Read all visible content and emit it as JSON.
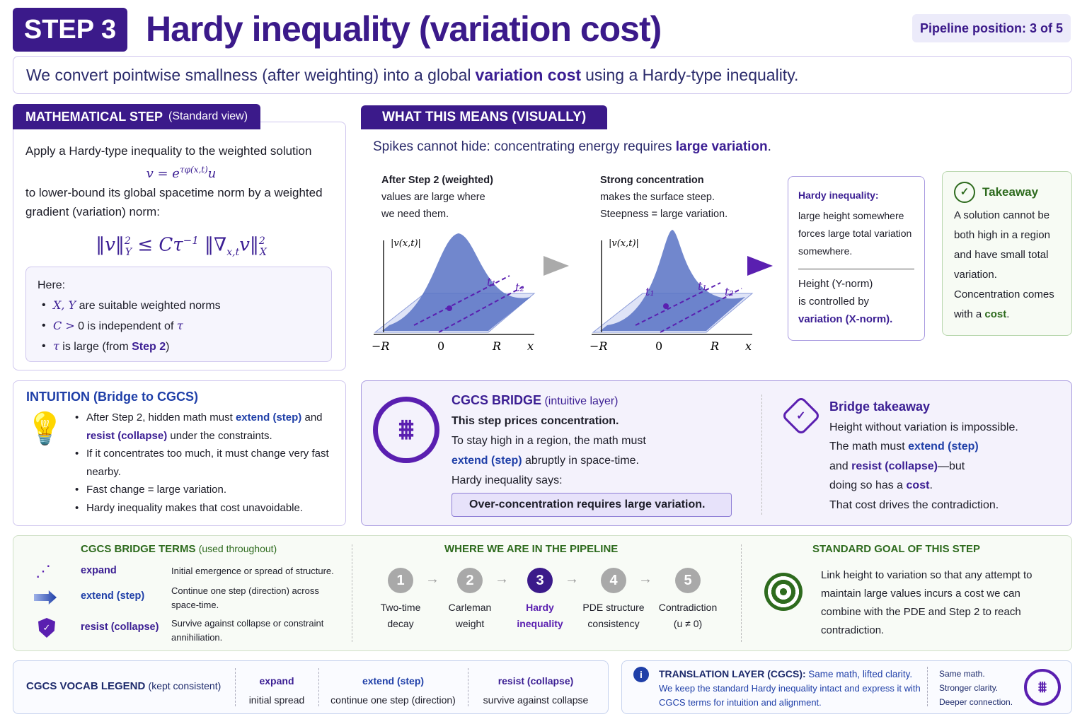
{
  "header": {
    "step_badge": "STEP 3",
    "title": "Hardy inequality (variation cost)",
    "pipeline_position": "Pipeline position: 3 of 5"
  },
  "summary": {
    "pre": "We convert pointwise smallness (after weighting) into a global ",
    "bold": "variation cost",
    "post": " using a Hardy-type inequality."
  },
  "math_step": {
    "tab": "MATHEMATICAL STEP",
    "tab_sub": "(Standard view)",
    "intro": "Apply a Hardy-type inequality to the weighted solution",
    "formula1": "v = e^{τφ(x,t)} u",
    "text2": "to lower-bound its global spacetime norm by a weighted gradient (variation) norm:",
    "formula2": "‖v‖²_Y ≤ C τ⁻¹ ‖∇_{x,t} v‖²_X",
    "here_label": "Here:",
    "here_items": [
      {
        "math": "X, Y",
        "text": " are suitable weighted norms"
      },
      {
        "math": "C >",
        "text": " 0 is independent of ",
        "math2": "τ"
      },
      {
        "math": "τ",
        "text": " is large (from ",
        "bold": "Step 2",
        "end": ")"
      }
    ]
  },
  "visual": {
    "tab": "WHAT THIS MEANS (VISUALLY)",
    "subtitle_pre": "Spikes cannot hide: concentrating energy requires ",
    "subtitle_bold": "large variation",
    "subtitle_post": ".",
    "panel1": {
      "title": "After Step 2 (weighted)",
      "line1": "values are large where",
      "line2": "we need them.",
      "ylabel": "|v(x,t)|",
      "ticks": [
        "−R",
        "0",
        "R",
        "x"
      ],
      "t1": "t₁",
      "t2": "t₂"
    },
    "panel2": {
      "title": "Strong concentration",
      "line1": "makes the surface steep.",
      "line2": "Steepness = large variation.",
      "ylabel": "|v(x,t)|",
      "ticks": [
        "−R",
        "0",
        "R",
        "x"
      ],
      "t1": "t₁",
      "t1b": "t₁",
      "t2": "t₂"
    },
    "hardy_box": {
      "title": "Hardy inequality:",
      "body": "large height somewhere forces large total variation somewhere.",
      "line1": "Height (Y-norm)",
      "line2": "is controlled by",
      "line3": "variation (X-norm)."
    },
    "takeaway": {
      "title": "Takeaway",
      "body1": "A solution cannot be both high in a region and have small total variation.",
      "body2": "Concentration comes with a ",
      "cost": "cost",
      "end": "."
    }
  },
  "intuition": {
    "title": "INTUITION (Bridge to CGCS)",
    "items": [
      {
        "a": "After Step 2, hidden math must ",
        "b": "extend (step)",
        "c": " and ",
        "d": "resist (collapse)",
        "e": " under the constraints."
      },
      {
        "a": "If it concentrates too much, it must change very fast nearby."
      },
      {
        "a": "Fast change = large variation."
      },
      {
        "a": "Hardy inequality makes that cost unavoidable."
      }
    ]
  },
  "bridge": {
    "title": "CGCS BRIDGE",
    "title_sub": "(intuitive layer)",
    "bold": "This step prices concentration.",
    "l1": "To stay high in a region, the math must",
    "l2b": "extend (step)",
    "l2": " abruptly in space-time.",
    "l3": "Hardy inequality says:",
    "callout": "Over-concentration requires large variation.",
    "takeaway_title": "Bridge takeaway",
    "t1": "Height without variation is impossible.",
    "t2a": "The math must ",
    "t2b": "extend (step)",
    "t3a": "and ",
    "t3b": "resist (collapse)",
    "t3c": "—but",
    "t4a": "doing so has a ",
    "t4b": "cost",
    "t4c": ".",
    "t5": "That cost drives the contradiction."
  },
  "terms": {
    "title": "CGCS BRIDGE TERMS",
    "title_sub": "(used throughout)",
    "items": [
      {
        "term": "expand",
        "desc": "Initial emergence or spread of structure."
      },
      {
        "term": "extend (step)",
        "desc": "Continue one step (direction) across space-time."
      },
      {
        "term": "resist (collapse)",
        "desc": "Survive against collapse or constraint annihiliation."
      }
    ]
  },
  "pipeline": {
    "title": "WHERE WE ARE IN THE PIPELINE",
    "steps": [
      {
        "n": "1",
        "l1": "Two-time",
        "l2": "decay"
      },
      {
        "n": "2",
        "l1": "Carleman",
        "l2": "weight"
      },
      {
        "n": "3",
        "l1": "Hardy",
        "l2": "inequality"
      },
      {
        "n": "4",
        "l1": "PDE structure",
        "l2": "consistency"
      },
      {
        "n": "5",
        "l1": "Contradiction",
        "l2": "(u ≠ 0)"
      }
    ],
    "active": 3,
    "arrow": "→"
  },
  "goal": {
    "title": "STANDARD GOAL OF THIS STEP",
    "body": "Link height to variation so that any attempt to maintain large values incurs a cost we can combine with the PDE and Step 2 to reach contradiction."
  },
  "legend": {
    "title": "CGCS VOCAB LEGEND",
    "title_sub": "(kept consistent)",
    "items": [
      {
        "term": "expand",
        "desc": "initial spread"
      },
      {
        "term": "extend (step)",
        "desc": "continue one step (direction)"
      },
      {
        "term": "resist (collapse)",
        "desc": "survive against collapse"
      }
    ]
  },
  "translation": {
    "title": "TRANSLATION LAYER (CGCS):",
    "title_sub": "Same math, lifted clarity.",
    "body": "We keep the standard Hardy inequality intact and express it with CGCS terms for intuition and alignment.",
    "s1": "Same math.",
    "s2": "Stronger clarity.",
    "s3": "Deeper connection."
  },
  "colors": {
    "primary": "#3b1a8a",
    "blue": "#1f3fa8",
    "green": "#2e6b1e"
  }
}
